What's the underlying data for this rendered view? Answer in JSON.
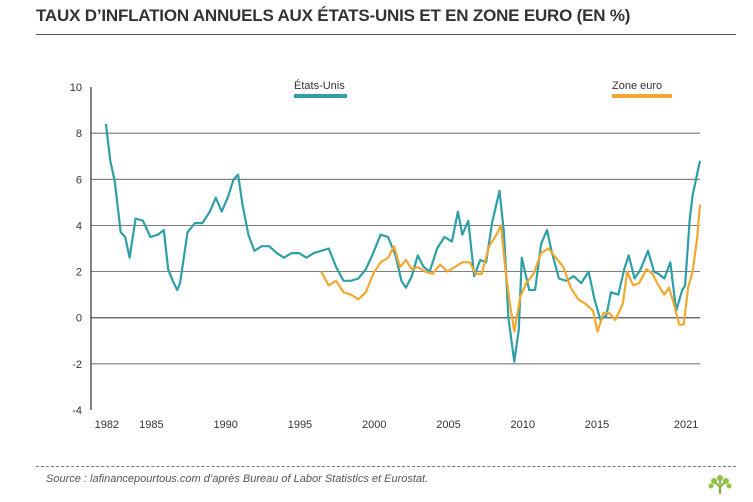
{
  "title": "TAUX D’INFLATION ANNUELS AUX ÉTATS-UNIS ET EN ZONE EURO (EN %)",
  "source": "Source : lafinancepourtous.com d’après Bureau of Labor Statistics et Eurostat.",
  "colors": {
    "us": "#2e9fa6",
    "eu": "#f0a830",
    "zero": "#555555",
    "grid": "#333333"
  },
  "chart_data": {
    "type": "line",
    "xlim": [
      1981,
      2022
    ],
    "ylim": [
      -4,
      10
    ],
    "x_ticks": [
      "1982",
      "1985",
      "1990",
      "1995",
      "2000",
      "2005",
      "2010",
      "2015",
      "2021"
    ],
    "x_tick_values": [
      1982,
      1985,
      1990,
      1995,
      2000,
      2005,
      2010,
      2015,
      2021
    ],
    "y_ticks": [
      "-4",
      "-2",
      "0",
      "2",
      "4",
      "6",
      "8",
      "10"
    ],
    "y_tick_values": [
      -4,
      -2,
      0,
      2,
      4,
      6,
      8,
      10
    ],
    "gridlines": [
      -2,
      0,
      2,
      4,
      6,
      8
    ],
    "legend": [
      {
        "name": "États-Unis",
        "position": "top-left"
      },
      {
        "name": "Zone euro",
        "position": "top-right"
      }
    ],
    "series": [
      {
        "name": "États-Unis",
        "points": [
          [
            1982.0,
            8.4
          ],
          [
            1982.3,
            6.8
          ],
          [
            1982.6,
            5.9
          ],
          [
            1983.0,
            3.7
          ],
          [
            1983.3,
            3.5
          ],
          [
            1983.6,
            2.6
          ],
          [
            1984.0,
            4.3
          ],
          [
            1984.5,
            4.2
          ],
          [
            1985.0,
            3.5
          ],
          [
            1985.5,
            3.6
          ],
          [
            1985.9,
            3.8
          ],
          [
            1986.2,
            2.1
          ],
          [
            1986.5,
            1.6
          ],
          [
            1986.8,
            1.2
          ],
          [
            1987.0,
            1.5
          ],
          [
            1987.5,
            3.7
          ],
          [
            1988.0,
            4.1
          ],
          [
            1988.5,
            4.1
          ],
          [
            1989.0,
            4.6
          ],
          [
            1989.4,
            5.2
          ],
          [
            1989.8,
            4.6
          ],
          [
            1990.2,
            5.2
          ],
          [
            1990.6,
            6.0
          ],
          [
            1990.9,
            6.2
          ],
          [
            1991.2,
            4.9
          ],
          [
            1991.6,
            3.6
          ],
          [
            1992.0,
            2.9
          ],
          [
            1992.5,
            3.1
          ],
          [
            1993.0,
            3.1
          ],
          [
            1993.5,
            2.8
          ],
          [
            1994.0,
            2.6
          ],
          [
            1994.5,
            2.8
          ],
          [
            1995.0,
            2.8
          ],
          [
            1995.5,
            2.6
          ],
          [
            1996.0,
            2.8
          ],
          [
            1996.5,
            2.9
          ],
          [
            1997.0,
            3.0
          ],
          [
            1997.5,
            2.2
          ],
          [
            1998.0,
            1.6
          ],
          [
            1998.5,
            1.6
          ],
          [
            1999.0,
            1.7
          ],
          [
            1999.5,
            2.1
          ],
          [
            2000.0,
            2.8
          ],
          [
            2000.5,
            3.6
          ],
          [
            2001.0,
            3.5
          ],
          [
            2001.5,
            2.7
          ],
          [
            2001.9,
            1.6
          ],
          [
            2002.2,
            1.3
          ],
          [
            2002.6,
            1.8
          ],
          [
            2003.0,
            2.7
          ],
          [
            2003.4,
            2.2
          ],
          [
            2003.8,
            2.0
          ],
          [
            2004.3,
            3.0
          ],
          [
            2004.8,
            3.5
          ],
          [
            2005.3,
            3.3
          ],
          [
            2005.7,
            4.6
          ],
          [
            2006.0,
            3.6
          ],
          [
            2006.4,
            4.2
          ],
          [
            2006.8,
            1.8
          ],
          [
            2007.2,
            2.5
          ],
          [
            2007.6,
            2.4
          ],
          [
            2008.0,
            4.1
          ],
          [
            2008.5,
            5.5
          ],
          [
            2008.8,
            3.7
          ],
          [
            2009.1,
            0.0
          ],
          [
            2009.5,
            -1.9
          ],
          [
            2009.8,
            -0.5
          ],
          [
            2010.0,
            2.6
          ],
          [
            2010.5,
            1.2
          ],
          [
            2010.9,
            1.2
          ],
          [
            2011.3,
            3.2
          ],
          [
            2011.7,
            3.8
          ],
          [
            2012.0,
            2.9
          ],
          [
            2012.5,
            1.7
          ],
          [
            2013.0,
            1.6
          ],
          [
            2013.5,
            1.8
          ],
          [
            2014.0,
            1.5
          ],
          [
            2014.5,
            2.0
          ],
          [
            2014.9,
            0.8
          ],
          [
            2015.3,
            -0.1
          ],
          [
            2015.7,
            0.1
          ],
          [
            2016.0,
            1.1
          ],
          [
            2016.5,
            1.0
          ],
          [
            2016.9,
            2.1
          ],
          [
            2017.2,
            2.7
          ],
          [
            2017.6,
            1.7
          ],
          [
            2018.0,
            2.1
          ],
          [
            2018.5,
            2.9
          ],
          [
            2018.9,
            2.0
          ],
          [
            2019.2,
            1.9
          ],
          [
            2019.6,
            1.7
          ],
          [
            2020.0,
            2.4
          ],
          [
            2020.4,
            0.3
          ],
          [
            2020.8,
            1.2
          ],
          [
            2021.0,
            1.4
          ],
          [
            2021.3,
            4.2
          ],
          [
            2021.5,
            5.3
          ],
          [
            2021.8,
            6.2
          ],
          [
            2022.0,
            6.8
          ]
        ]
      },
      {
        "name": "Zone euro",
        "points": [
          [
            1996.5,
            2.0
          ],
          [
            1997.0,
            1.4
          ],
          [
            1997.5,
            1.6
          ],
          [
            1998.0,
            1.1
          ],
          [
            1998.5,
            1.0
          ],
          [
            1999.0,
            0.8
          ],
          [
            1999.5,
            1.1
          ],
          [
            2000.0,
            1.9
          ],
          [
            2000.5,
            2.4
          ],
          [
            2001.0,
            2.6
          ],
          [
            2001.4,
            3.1
          ],
          [
            2001.8,
            2.2
          ],
          [
            2002.2,
            2.5
          ],
          [
            2002.6,
            2.1
          ],
          [
            2003.0,
            2.2
          ],
          [
            2003.5,
            2.0
          ],
          [
            2004.0,
            1.9
          ],
          [
            2004.5,
            2.3
          ],
          [
            2005.0,
            2.0
          ],
          [
            2005.5,
            2.2
          ],
          [
            2006.0,
            2.4
          ],
          [
            2006.5,
            2.4
          ],
          [
            2006.9,
            1.9
          ],
          [
            2007.3,
            1.9
          ],
          [
            2007.8,
            3.1
          ],
          [
            2008.3,
            3.6
          ],
          [
            2008.6,
            4.0
          ],
          [
            2008.9,
            2.1
          ],
          [
            2009.2,
            0.6
          ],
          [
            2009.5,
            -0.6
          ],
          [
            2009.9,
            0.9
          ],
          [
            2010.3,
            1.5
          ],
          [
            2010.8,
            1.9
          ],
          [
            2011.3,
            2.8
          ],
          [
            2011.8,
            3.0
          ],
          [
            2012.3,
            2.6
          ],
          [
            2012.8,
            2.2
          ],
          [
            2013.3,
            1.3
          ],
          [
            2013.8,
            0.8
          ],
          [
            2014.3,
            0.6
          ],
          [
            2014.8,
            0.3
          ],
          [
            2015.1,
            -0.6
          ],
          [
            2015.5,
            0.2
          ],
          [
            2015.9,
            0.2
          ],
          [
            2016.3,
            -0.1
          ],
          [
            2016.8,
            0.6
          ],
          [
            2017.1,
            2.0
          ],
          [
            2017.5,
            1.4
          ],
          [
            2017.9,
            1.5
          ],
          [
            2018.4,
            2.1
          ],
          [
            2018.8,
            1.9
          ],
          [
            2019.2,
            1.4
          ],
          [
            2019.6,
            1.0
          ],
          [
            2019.9,
            1.3
          ],
          [
            2020.2,
            0.7
          ],
          [
            2020.6,
            -0.3
          ],
          [
            2020.9,
            -0.3
          ],
          [
            2021.2,
            1.3
          ],
          [
            2021.5,
            2.0
          ],
          [
            2021.8,
            3.4
          ],
          [
            2022.0,
            4.9
          ]
        ]
      }
    ]
  }
}
